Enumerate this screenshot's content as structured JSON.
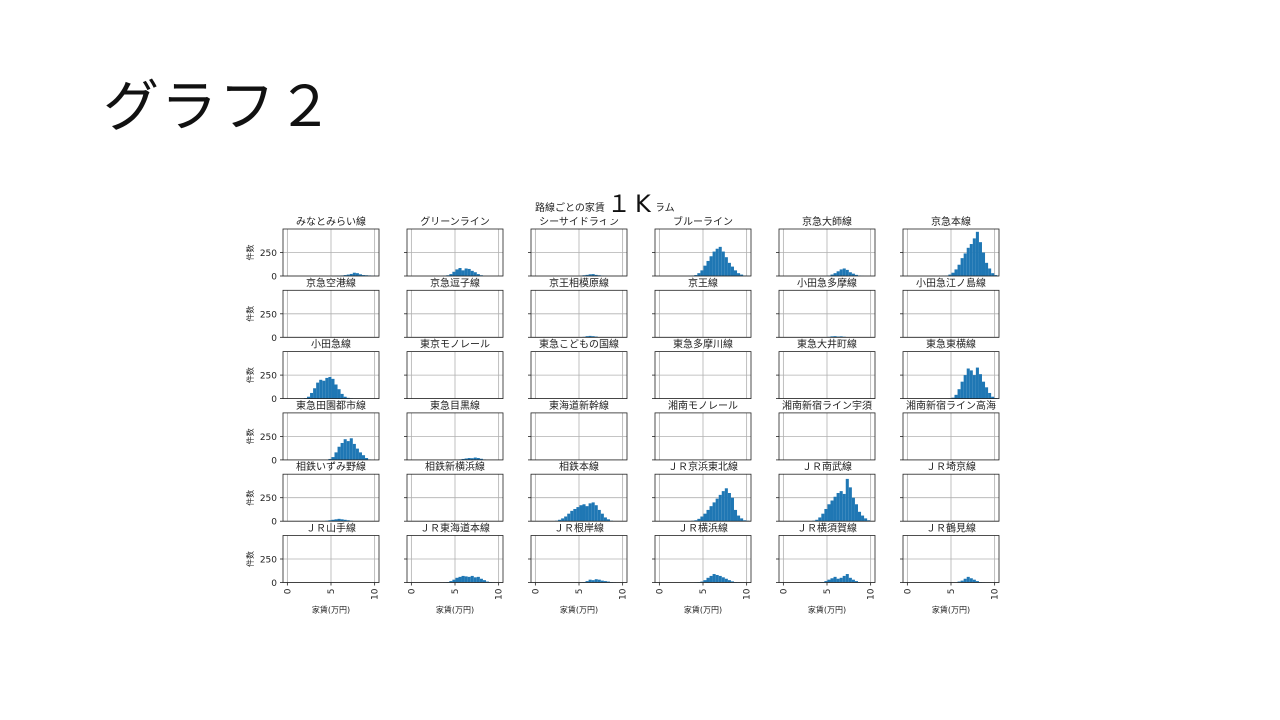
{
  "slide": {
    "title": "グラフ２",
    "overlay_text": "１K"
  },
  "chart_data": {
    "type": "bar",
    "title": "路線ごとの家賃のヒストグラム",
    "xlabel": "家賃(万円)",
    "ylabel": "件数",
    "xlim": [
      -0.5,
      10.5
    ],
    "ylim": [
      0,
      500
    ],
    "yticks": [
      0,
      250
    ],
    "xticks": [
      0,
      5,
      10
    ],
    "grid": true,
    "bar_color": "#1f77b4",
    "bin_start": 0.5,
    "bin_width": 0.35,
    "panels": [
      {
        "name": "みなとみらい線",
        "values": [
          0,
          0,
          0,
          0,
          0,
          0,
          0,
          0,
          0,
          0,
          0,
          0,
          0,
          0,
          2,
          4,
          6,
          10,
          15,
          22,
          35,
          30,
          18,
          10,
          8,
          6,
          3,
          2
        ]
      },
      {
        "name": "グリーンライン",
        "values": [
          0,
          0,
          0,
          0,
          0,
          0,
          0,
          0,
          0,
          3,
          8,
          20,
          45,
          70,
          85,
          60,
          80,
          75,
          55,
          40,
          20,
          8,
          0,
          0,
          0,
          0,
          0,
          0
        ]
      },
      {
        "name": "シーサイドライン",
        "values": [
          0,
          0,
          0,
          0,
          0,
          0,
          0,
          0,
          0,
          0,
          0,
          0,
          0,
          3,
          8,
          12,
          18,
          20,
          12,
          8,
          5,
          2,
          0,
          0,
          0,
          0,
          0,
          0
        ]
      },
      {
        "name": "ブルーライン",
        "values": [
          0,
          0,
          0,
          0,
          0,
          0,
          0,
          0,
          2,
          5,
          10,
          30,
          60,
          110,
          160,
          210,
          260,
          290,
          310,
          260,
          200,
          140,
          100,
          60,
          30,
          15,
          5,
          2
        ]
      },
      {
        "name": "京急大師線",
        "values": [
          0,
          0,
          0,
          0,
          0,
          0,
          0,
          0,
          0,
          0,
          0,
          0,
          0,
          5,
          15,
          30,
          50,
          70,
          80,
          65,
          40,
          25,
          12,
          5,
          2,
          0,
          0,
          0
        ]
      },
      {
        "name": "京急本線",
        "values": [
          0,
          0,
          0,
          0,
          0,
          0,
          0,
          0,
          0,
          0,
          2,
          5,
          15,
          35,
          70,
          120,
          190,
          240,
          300,
          340,
          400,
          470,
          360,
          250,
          140,
          80,
          30,
          10
        ]
      },
      {
        "name": "京急空港線",
        "values": [
          0,
          0,
          0,
          0,
          0,
          0,
          0,
          0,
          0,
          0,
          0,
          0,
          0,
          0,
          0,
          0,
          0,
          0,
          0,
          0,
          0,
          0,
          0,
          0,
          0,
          0,
          0,
          0
        ]
      },
      {
        "name": "京急逗子線",
        "values": [
          0,
          0,
          0,
          0,
          0,
          0,
          0,
          0,
          0,
          0,
          0,
          0,
          0,
          0,
          0,
          0,
          0,
          0,
          0,
          0,
          0,
          0,
          0,
          0,
          0,
          0,
          0,
          0
        ]
      },
      {
        "name": "京王相模原線",
        "values": [
          0,
          0,
          0,
          0,
          0,
          0,
          0,
          0,
          0,
          0,
          0,
          0,
          0,
          2,
          5,
          12,
          15,
          12,
          8,
          3,
          0,
          0,
          0,
          0,
          0,
          0,
          0,
          0
        ]
      },
      {
        "name": "京王線",
        "values": [
          0,
          0,
          0,
          0,
          0,
          0,
          0,
          0,
          0,
          0,
          0,
          0,
          0,
          0,
          0,
          0,
          0,
          0,
          0,
          0,
          0,
          0,
          0,
          0,
          0,
          0,
          0,
          0
        ]
      },
      {
        "name": "小田急多摩線",
        "values": [
          0,
          0,
          0,
          0,
          0,
          0,
          0,
          0,
          0,
          0,
          0,
          0,
          2,
          5,
          10,
          12,
          8,
          10,
          6,
          3,
          0,
          0,
          0,
          0,
          0,
          0,
          0,
          0
        ]
      },
      {
        "name": "小田急江ノ島線",
        "values": [
          0,
          0,
          0,
          0,
          0,
          0,
          0,
          0,
          0,
          0,
          0,
          0,
          0,
          0,
          0,
          0,
          0,
          0,
          0,
          0,
          0,
          0,
          0,
          0,
          0,
          0,
          0,
          0
        ]
      },
      {
        "name": "小田急線",
        "values": [
          0,
          0,
          0,
          0,
          5,
          20,
          60,
          110,
          170,
          200,
          190,
          220,
          230,
          210,
          150,
          100,
          50,
          20,
          8,
          3,
          0,
          0,
          0,
          0,
          0,
          0,
          0,
          0
        ]
      },
      {
        "name": "東京モノレール",
        "values": [
          0,
          0,
          0,
          0,
          0,
          0,
          0,
          0,
          0,
          0,
          0,
          0,
          0,
          0,
          0,
          0,
          0,
          0,
          0,
          0,
          0,
          0,
          0,
          0,
          0,
          0,
          0,
          0
        ]
      },
      {
        "name": "東急こどもの国線",
        "values": [
          0,
          0,
          0,
          0,
          0,
          0,
          0,
          0,
          0,
          0,
          0,
          0,
          0,
          0,
          0,
          0,
          0,
          0,
          0,
          0,
          0,
          0,
          0,
          0,
          0,
          0,
          0,
          0
        ]
      },
      {
        "name": "東急多摩川線",
        "values": [
          0,
          0,
          0,
          0,
          0,
          0,
          0,
          0,
          0,
          0,
          0,
          0,
          0,
          0,
          0,
          0,
          0,
          0,
          0,
          0,
          0,
          0,
          0,
          0,
          0,
          0,
          0,
          0
        ]
      },
      {
        "name": "東急大井町線",
        "values": [
          0,
          0,
          0,
          0,
          0,
          0,
          0,
          0,
          0,
          0,
          0,
          0,
          0,
          0,
          0,
          0,
          0,
          0,
          0,
          0,
          0,
          0,
          0,
          0,
          0,
          0,
          0,
          0
        ]
      },
      {
        "name": "東急東横線",
        "values": [
          0,
          0,
          0,
          0,
          0,
          0,
          0,
          0,
          0,
          0,
          0,
          0,
          2,
          10,
          40,
          100,
          180,
          250,
          320,
          300,
          250,
          330,
          260,
          180,
          120,
          60,
          20,
          5
        ]
      },
      {
        "name": "東急田園都市線",
        "values": [
          0,
          0,
          0,
          0,
          0,
          0,
          0,
          0,
          0,
          0,
          0,
          0,
          10,
          30,
          80,
          140,
          180,
          220,
          200,
          230,
          170,
          120,
          80,
          50,
          20,
          5,
          0,
          0
        ]
      },
      {
        "name": "東急目黒線",
        "values": [
          0,
          0,
          0,
          0,
          0,
          0,
          0,
          0,
          0,
          0,
          0,
          0,
          0,
          0,
          5,
          10,
          15,
          20,
          18,
          25,
          20,
          12,
          5,
          2,
          0,
          0,
          0,
          0
        ]
      },
      {
        "name": "東海道新幹線",
        "values": [
          0,
          0,
          0,
          0,
          0,
          0,
          0,
          0,
          0,
          0,
          0,
          0,
          0,
          0,
          0,
          0,
          0,
          0,
          0,
          0,
          0,
          0,
          0,
          0,
          0,
          0,
          0,
          0
        ]
      },
      {
        "name": "湘南モノレール",
        "values": [
          0,
          0,
          0,
          0,
          0,
          0,
          0,
          0,
          0,
          0,
          0,
          0,
          0,
          0,
          0,
          0,
          0,
          0,
          0,
          0,
          0,
          0,
          0,
          0,
          0,
          0,
          0,
          0
        ]
      },
      {
        "name": "湘南新宿ライン宇須",
        "values": [
          0,
          0,
          0,
          0,
          0,
          0,
          0,
          0,
          0,
          0,
          0,
          0,
          0,
          0,
          0,
          0,
          0,
          0,
          0,
          0,
          0,
          0,
          0,
          0,
          0,
          0,
          0,
          0
        ]
      },
      {
        "name": "湘南新宿ライン高海",
        "values": [
          0,
          0,
          0,
          0,
          0,
          0,
          0,
          0,
          0,
          0,
          0,
          0,
          0,
          0,
          0,
          0,
          0,
          0,
          0,
          0,
          0,
          0,
          0,
          0,
          0,
          0,
          0,
          0
        ]
      },
      {
        "name": "相鉄いずみ野線",
        "values": [
          0,
          0,
          0,
          0,
          0,
          0,
          0,
          0,
          0,
          0,
          2,
          5,
          10,
          15,
          20,
          25,
          20,
          15,
          10,
          5,
          2,
          0,
          0,
          0,
          0,
          0,
          0,
          0
        ]
      },
      {
        "name": "相鉄新横浜線",
        "values": [
          0,
          0,
          0,
          0,
          0,
          0,
          0,
          0,
          0,
          0,
          0,
          0,
          0,
          0,
          0,
          0,
          0,
          0,
          0,
          0,
          0,
          0,
          0,
          0,
          0,
          0,
          0,
          0
        ]
      },
      {
        "name": "相鉄本線",
        "values": [
          0,
          0,
          0,
          0,
          0,
          5,
          15,
          30,
          50,
          80,
          110,
          130,
          150,
          170,
          180,
          160,
          190,
          200,
          170,
          120,
          80,
          40,
          20,
          5,
          0,
          0,
          0,
          0
        ]
      },
      {
        "name": "ＪＲ京浜東北線",
        "values": [
          0,
          0,
          0,
          0,
          0,
          0,
          0,
          0,
          2,
          5,
          10,
          25,
          50,
          80,
          120,
          160,
          200,
          240,
          280,
          320,
          350,
          300,
          250,
          120,
          60,
          30,
          10,
          5
        ]
      },
      {
        "name": "ＪＲ南武線",
        "values": [
          0,
          0,
          0,
          0,
          0,
          0,
          0,
          0,
          5,
          15,
          40,
          80,
          130,
          180,
          220,
          260,
          300,
          320,
          290,
          450,
          360,
          250,
          180,
          100,
          60,
          30,
          10,
          2
        ]
      },
      {
        "name": "ＪＲ埼京線",
        "values": [
          0,
          0,
          0,
          0,
          0,
          0,
          0,
          0,
          0,
          0,
          0,
          0,
          0,
          0,
          0,
          0,
          0,
          0,
          0,
          0,
          0,
          0,
          0,
          0,
          0,
          0,
          0,
          0
        ]
      },
      {
        "name": "ＪＲ山手線",
        "values": [
          0,
          0,
          0,
          0,
          0,
          0,
          0,
          0,
          0,
          0,
          0,
          0,
          0,
          0,
          0,
          0,
          0,
          0,
          0,
          0,
          0,
          0,
          0,
          0,
          0,
          0,
          0,
          0
        ]
      },
      {
        "name": "ＪＲ東海道本線",
        "values": [
          0,
          0,
          0,
          0,
          0,
          0,
          0,
          0,
          0,
          2,
          5,
          15,
          30,
          50,
          60,
          70,
          65,
          60,
          70,
          55,
          60,
          40,
          25,
          10,
          5,
          2,
          0,
          0
        ]
      },
      {
        "name": "ＪＲ根岸線",
        "values": [
          0,
          0,
          0,
          0,
          0,
          0,
          0,
          0,
          0,
          0,
          0,
          0,
          0,
          2,
          5,
          15,
          30,
          25,
          35,
          30,
          20,
          15,
          10,
          5,
          2,
          0,
          0,
          0
        ]
      },
      {
        "name": "ＪＲ横浜線",
        "values": [
          0,
          0,
          0,
          0,
          0,
          0,
          0,
          0,
          0,
          0,
          2,
          5,
          10,
          25,
          50,
          70,
          90,
          80,
          70,
          55,
          40,
          25,
          12,
          5,
          2,
          0,
          0,
          0
        ]
      },
      {
        "name": "ＪＲ横須賀線",
        "values": [
          0,
          0,
          0,
          0,
          0,
          0,
          0,
          0,
          0,
          0,
          2,
          5,
          15,
          30,
          45,
          60,
          40,
          50,
          70,
          90,
          50,
          30,
          15,
          5,
          2,
          0,
          0,
          0
        ]
      },
      {
        "name": "ＪＲ鶴見線",
        "values": [
          0,
          0,
          0,
          0,
          0,
          0,
          0,
          0,
          0,
          0,
          0,
          0,
          0,
          0,
          0,
          10,
          20,
          40,
          60,
          45,
          30,
          15,
          5,
          2,
          0,
          0,
          0,
          0
        ]
      }
    ]
  }
}
